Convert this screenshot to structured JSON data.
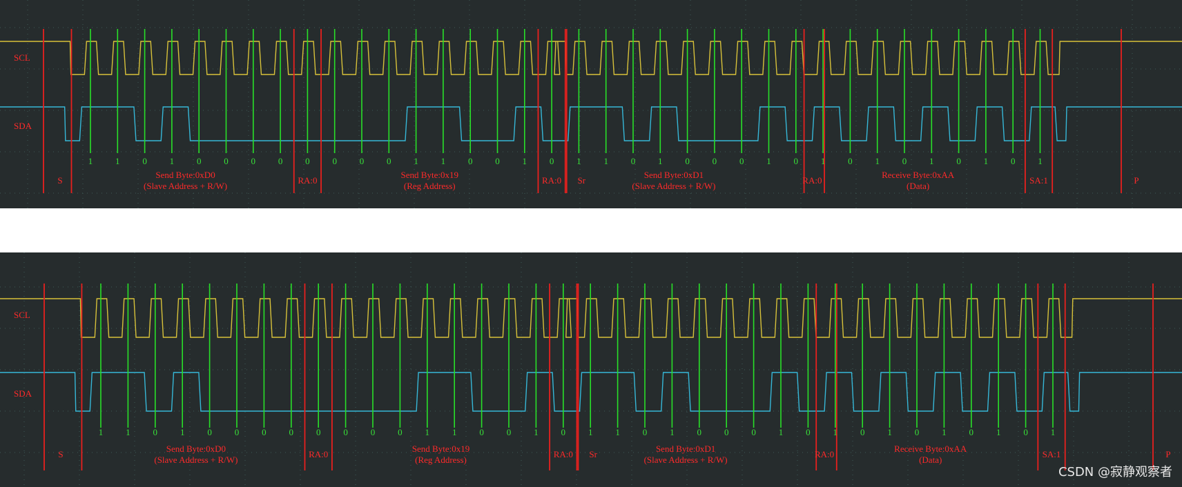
{
  "colors": {
    "background": "#262c2d",
    "scl": "#d8c23a",
    "sda": "#36b8d8",
    "marker_red": "#e8201e",
    "marker_green": "#28e028",
    "label_red": "#ff2a2a",
    "bit_green": "#38e038",
    "grid": "#3f5a57"
  },
  "channels": {
    "scl": "SCL",
    "sda": "SDA"
  },
  "bits": [
    "1",
    "1",
    "0",
    "1",
    "0",
    "0",
    "0",
    "0",
    "0",
    "0",
    "0",
    "0",
    "1",
    "1",
    "0",
    "0",
    "1",
    "0",
    "1",
    "1",
    "0",
    "1",
    "0",
    "0",
    "0",
    "1",
    "0",
    "1",
    "0",
    "1",
    "0",
    "1",
    "0",
    "1",
    "0",
    "1"
  ],
  "labels": {
    "s": "S",
    "byte1_title": "Send Byte:0xD0",
    "byte1_sub": "(Slave Address + R/W)",
    "ra1": "RA:0",
    "byte2_title": "Send Byte:0x19",
    "byte2_sub": "(Reg Address)",
    "ra2": "RA:0",
    "sr": "Sr",
    "byte3_title": "Send Byte:0xD1",
    "byte3_sub": "(Slave Address + R/W)",
    "ra3": "RA:0",
    "byte4_title": "Receive Byte:0xAA",
    "byte4_sub": "(Data)",
    "sa": "SA:1",
    "p": "P"
  },
  "watermark": "CSDN @寂静观察者"
}
